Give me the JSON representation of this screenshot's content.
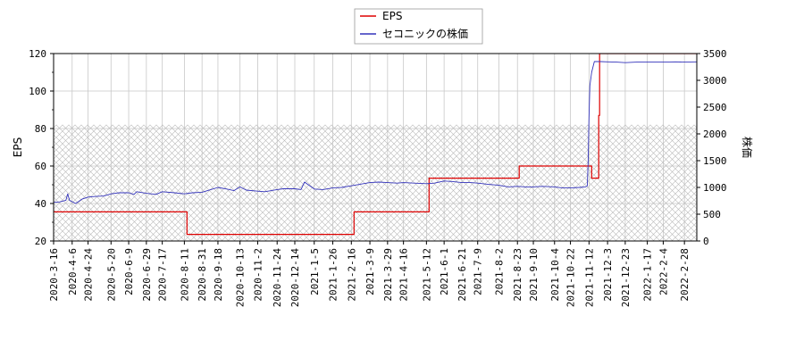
{
  "chart_data": {
    "type": "line",
    "legend": {
      "position": "top-center",
      "entries": [
        "EPS",
        "セコニックの株価"
      ]
    },
    "colors": {
      "eps": "#dd0000",
      "price": "#3333bb",
      "grid": "#c8c8c8",
      "hatch": "#b8b8b8"
    },
    "grid": true,
    "hatch_band": {
      "axis": "left",
      "range": [
        20,
        82
      ]
    },
    "y_left": {
      "label": "EPS",
      "lim": [
        20,
        120
      ],
      "ticks": [
        20,
        40,
        60,
        80,
        100,
        120
      ]
    },
    "y_right": {
      "label": "株価",
      "lim": [
        0,
        3500
      ],
      "ticks": [
        0,
        500,
        1000,
        1500,
        2000,
        2500,
        3000,
        3500
      ]
    },
    "x": {
      "lim": [
        "2020-03-16",
        "2022-03-14"
      ],
      "tick_labels": [
        "2020-3-16",
        "2020-4-6",
        "2020-4-24",
        "2020-5-20",
        "2020-6-9",
        "2020-6-29",
        "2020-7-17",
        "2020-8-11",
        "2020-8-31",
        "2020-9-18",
        "2020-10-13",
        "2020-11-2",
        "2020-11-24",
        "2020-12-14",
        "2021-1-5",
        "2021-1-26",
        "2021-2-16",
        "2021-3-9",
        "2021-3-29",
        "2021-4-16",
        "2021-5-12",
        "2021-6-1",
        "2021-6-21",
        "2021-7-9",
        "2021-8-2",
        "2021-8-23",
        "2021-9-10",
        "2021-10-4",
        "2021-10-22",
        "2021-11-12",
        "2021-12-3",
        "2021-12-23",
        "2022-1-17",
        "2022-2-4",
        "2022-2-28"
      ],
      "tick_dates": [
        "2020-03-16",
        "2020-04-06",
        "2020-04-24",
        "2020-05-20",
        "2020-06-09",
        "2020-06-29",
        "2020-07-17",
        "2020-08-11",
        "2020-08-31",
        "2020-09-18",
        "2020-10-13",
        "2020-11-02",
        "2020-11-24",
        "2020-12-14",
        "2021-01-05",
        "2021-01-26",
        "2021-02-16",
        "2021-03-09",
        "2021-03-29",
        "2021-04-16",
        "2021-05-12",
        "2021-06-01",
        "2021-06-21",
        "2021-07-09",
        "2021-08-02",
        "2021-08-23",
        "2021-09-10",
        "2021-10-04",
        "2021-10-22",
        "2021-11-12",
        "2021-12-03",
        "2021-12-23",
        "2022-01-17",
        "2022-02-04",
        "2022-02-28"
      ]
    },
    "series": [
      {
        "name": "EPS",
        "axis": "left",
        "step": true,
        "points": [
          [
            "2020-03-16",
            35.5
          ],
          [
            "2020-08-13",
            35.5
          ],
          [
            "2020-08-14",
            23.5
          ],
          [
            "2021-02-18",
            23.5
          ],
          [
            "2021-02-19",
            35.5
          ],
          [
            "2021-05-14",
            35.5
          ],
          [
            "2021-05-15",
            53.5
          ],
          [
            "2021-08-13",
            53.5
          ],
          [
            "2021-08-14",
            53.5
          ],
          [
            "2021-08-24",
            53.5
          ],
          [
            "2021-08-25",
            60
          ],
          [
            "2021-11-12",
            60
          ],
          [
            "2021-11-15",
            53.5
          ],
          [
            "2021-11-22",
            53.5
          ],
          [
            "2021-11-23",
            87
          ],
          [
            "2021-11-24",
            120
          ],
          [
            "2022-03-14",
            120
          ]
        ]
      },
      {
        "name": "セコニックの株価",
        "axis": "right",
        "step": false,
        "points": [
          [
            "2020-03-16",
            720
          ],
          [
            "2020-03-23",
            730
          ],
          [
            "2020-03-30",
            760
          ],
          [
            "2020-04-01",
            880
          ],
          [
            "2020-04-03",
            760
          ],
          [
            "2020-04-10",
            700
          ],
          [
            "2020-04-17",
            780
          ],
          [
            "2020-04-24",
            820
          ],
          [
            "2020-05-01",
            830
          ],
          [
            "2020-05-12",
            840
          ],
          [
            "2020-05-20",
            880
          ],
          [
            "2020-05-29",
            900
          ],
          [
            "2020-06-09",
            900
          ],
          [
            "2020-06-15",
            870
          ],
          [
            "2020-06-18",
            920
          ],
          [
            "2020-06-29",
            890
          ],
          [
            "2020-07-10",
            870
          ],
          [
            "2020-07-17",
            920
          ],
          [
            "2020-07-31",
            900
          ],
          [
            "2020-08-11",
            880
          ],
          [
            "2020-08-20",
            900
          ],
          [
            "2020-08-31",
            910
          ],
          [
            "2020-09-10",
            960
          ],
          [
            "2020-09-18",
            1000
          ],
          [
            "2020-09-28",
            970
          ],
          [
            "2020-10-06",
            940
          ],
          [
            "2020-10-13",
            1010
          ],
          [
            "2020-10-20",
            950
          ],
          [
            "2020-11-02",
            930
          ],
          [
            "2020-11-10",
            920
          ],
          [
            "2020-11-24",
            960
          ],
          [
            "2020-12-01",
            975
          ],
          [
            "2020-12-14",
            975
          ],
          [
            "2020-12-21",
            960
          ],
          [
            "2020-12-25",
            1100
          ],
          [
            "2021-01-05",
            970
          ],
          [
            "2021-01-15",
            960
          ],
          [
            "2021-01-26",
            990
          ],
          [
            "2021-02-05",
            1000
          ],
          [
            "2021-02-16",
            1030
          ],
          [
            "2021-02-26",
            1060
          ],
          [
            "2021-03-09",
            1090
          ],
          [
            "2021-03-19",
            1100
          ],
          [
            "2021-03-29",
            1090
          ],
          [
            "2021-04-09",
            1080
          ],
          [
            "2021-04-16",
            1090
          ],
          [
            "2021-04-28",
            1080
          ],
          [
            "2021-05-12",
            1070
          ],
          [
            "2021-05-21",
            1080
          ],
          [
            "2021-06-01",
            1120
          ],
          [
            "2021-06-11",
            1110
          ],
          [
            "2021-06-21",
            1090
          ],
          [
            "2021-07-01",
            1090
          ],
          [
            "2021-07-09",
            1080
          ],
          [
            "2021-07-20",
            1060
          ],
          [
            "2021-08-02",
            1040
          ],
          [
            "2021-08-13",
            1010
          ],
          [
            "2021-08-23",
            1020
          ],
          [
            "2021-09-01",
            1010
          ],
          [
            "2021-09-10",
            1010
          ],
          [
            "2021-09-20",
            1020
          ],
          [
            "2021-10-04",
            1010
          ],
          [
            "2021-10-13",
            990
          ],
          [
            "2021-10-22",
            990
          ],
          [
            "2021-11-01",
            1000
          ],
          [
            "2021-11-08",
            1010
          ],
          [
            "2021-11-10",
            1030
          ],
          [
            "2021-11-11",
            1500
          ],
          [
            "2021-11-12",
            2300
          ],
          [
            "2021-11-13",
            2900
          ],
          [
            "2021-11-15",
            3150
          ],
          [
            "2021-11-18",
            3350
          ],
          [
            "2021-11-25",
            3350
          ],
          [
            "2021-12-03",
            3345
          ],
          [
            "2021-12-13",
            3340
          ],
          [
            "2021-12-23",
            3330
          ],
          [
            "2022-01-05",
            3340
          ],
          [
            "2022-01-17",
            3340
          ],
          [
            "2022-02-04",
            3340
          ],
          [
            "2022-02-18",
            3345
          ],
          [
            "2022-02-28",
            3340
          ],
          [
            "2022-03-14",
            3345
          ]
        ]
      }
    ]
  }
}
